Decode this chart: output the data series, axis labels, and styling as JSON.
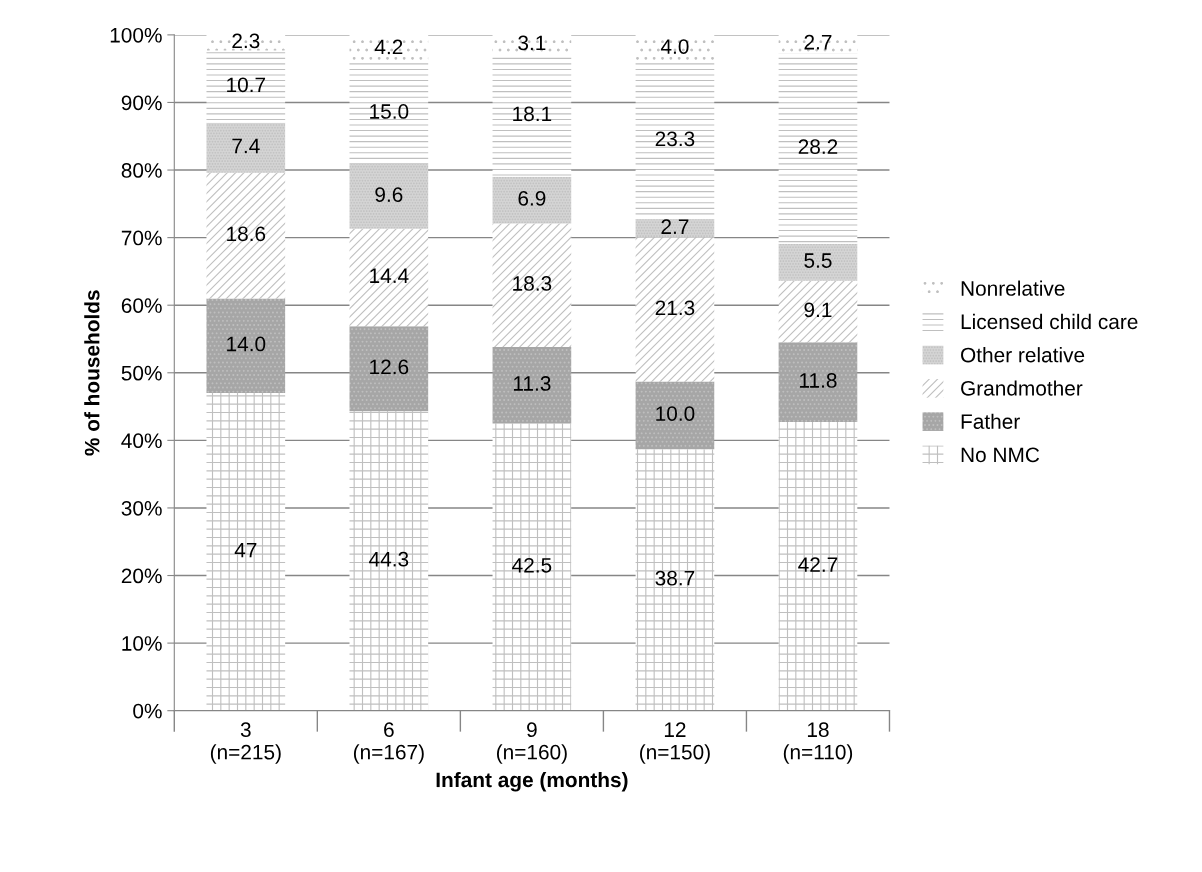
{
  "chart_data": {
    "type": "bar",
    "stacked": true,
    "categories": [
      "3\n(n=215)",
      "6\n(n=167)",
      "9\n(n=160)",
      "12\n(n=150)",
      "18\n(n=110)"
    ],
    "xlabel": "Infant age (months)",
    "ylabel": "% of households",
    "ylim": [
      0,
      100
    ],
    "yticks": [
      {
        "value": 0,
        "label": "0%"
      },
      {
        "value": 10,
        "label": "10%"
      },
      {
        "value": 20,
        "label": "20%"
      },
      {
        "value": 30,
        "label": "30%"
      },
      {
        "value": 40,
        "label": "40%"
      },
      {
        "value": 50,
        "label": "50%"
      },
      {
        "value": 60,
        "label": "60%"
      },
      {
        "value": 70,
        "label": "70%"
      },
      {
        "value": 80,
        "label": "80%"
      },
      {
        "value": 90,
        "label": "90%"
      },
      {
        "value": 100,
        "label": "100%"
      }
    ],
    "grid": "y",
    "legend": "right",
    "series": [
      {
        "name": "No NMC",
        "color": "#ffffff",
        "values": [
          47,
          44.3,
          42.5,
          38.7,
          42.7
        ],
        "value_labels": [
          "47",
          "44.3",
          "42.5",
          "38.7",
          "42.7"
        ]
      },
      {
        "name": "Father",
        "color": "#a6a6a6",
        "values": [
          14.0,
          12.6,
          11.3,
          10.0,
          11.8
        ],
        "value_labels": [
          "14.0",
          "12.6",
          "11.3",
          "10.0",
          "11.8"
        ]
      },
      {
        "name": "Grandmother",
        "color": "#ffffff",
        "values": [
          18.6,
          14.4,
          18.3,
          21.3,
          9.1
        ],
        "value_labels": [
          "18.6",
          "14.4",
          "18.3",
          "21.3",
          "9.1"
        ]
      },
      {
        "name": "Other relative",
        "color": "#d4d4d4",
        "values": [
          7.4,
          9.6,
          6.9,
          2.7,
          5.5
        ],
        "value_labels": [
          "7.4",
          "9.6",
          "6.9",
          "2.7",
          "5.5"
        ]
      },
      {
        "name": "Licensed child care",
        "color": "#ffffff",
        "values": [
          10.7,
          15.0,
          18.1,
          23.3,
          28.2
        ],
        "value_labels": [
          "10.7",
          "15.0",
          "18.1",
          "23.3",
          "28.2"
        ]
      },
      {
        "name": "Nonrelative",
        "color": "#ffffff",
        "values": [
          2.3,
          4.2,
          3.1,
          4.0,
          2.7
        ],
        "value_labels": [
          "2.3",
          "4.2",
          "3.1",
          "4.0",
          "2.7"
        ]
      }
    ]
  }
}
